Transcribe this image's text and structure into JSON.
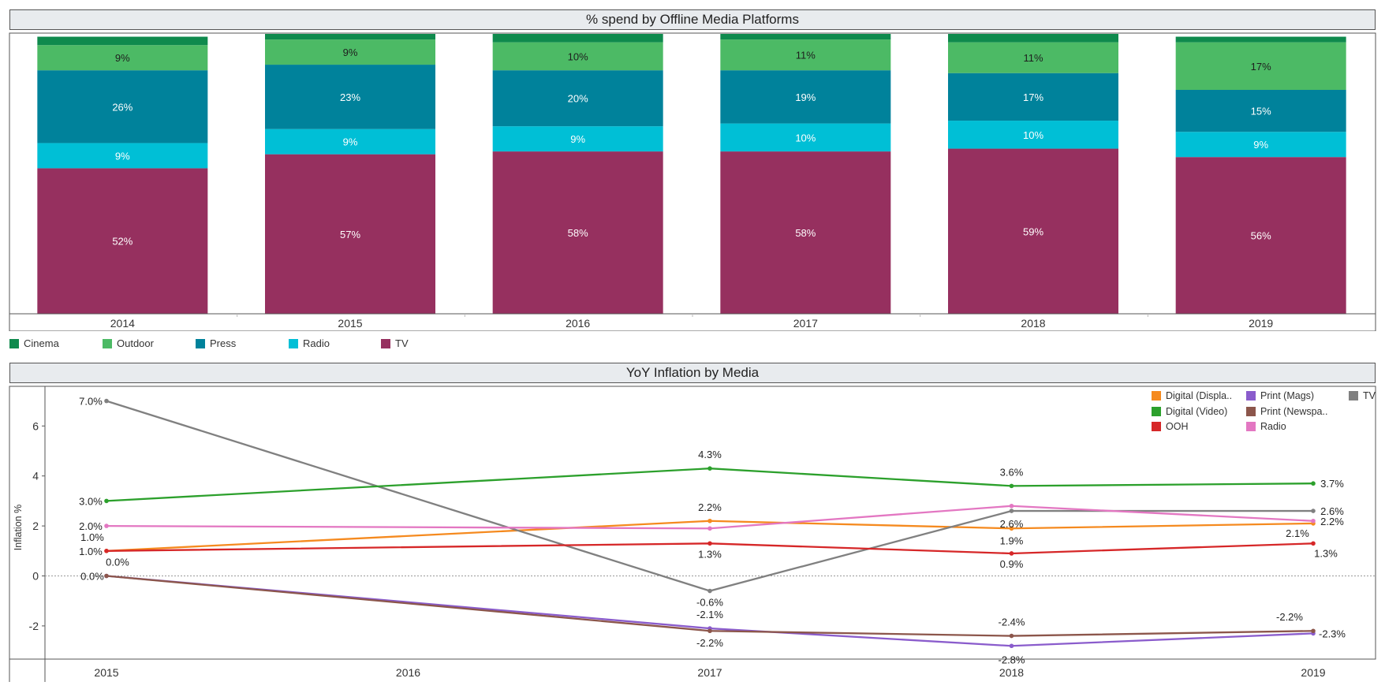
{
  "chart_data": [
    {
      "type": "bar",
      "stacked": true,
      "title": "% spend by Offline Media Platforms",
      "categories": [
        "2014",
        "2015",
        "2016",
        "2017",
        "2018",
        "2019"
      ],
      "series": [
        {
          "name": "TV",
          "color": "#96305f",
          "values": [
            52,
            57,
            58,
            58,
            59,
            56
          ],
          "labels": [
            "52%",
            "57%",
            "58%",
            "58%",
            "59%",
            "56%"
          ]
        },
        {
          "name": "Radio",
          "color": "#00bfd6",
          "values": [
            9,
            9,
            9,
            10,
            10,
            9
          ],
          "labels": [
            "9%",
            "9%",
            "9%",
            "10%",
            "10%",
            "9%"
          ]
        },
        {
          "name": "Press",
          "color": "#00829b",
          "values": [
            26,
            23,
            20,
            19,
            17,
            15
          ],
          "labels": [
            "26%",
            "23%",
            "20%",
            "19%",
            "17%",
            "15%"
          ]
        },
        {
          "name": "Outdoor",
          "color": "#4cba65",
          "values": [
            9,
            9,
            10,
            11,
            11,
            17
          ],
          "labels": [
            "9%",
            "9%",
            "10%",
            "11%",
            "11%",
            "17%"
          ]
        },
        {
          "name": "Cinema",
          "color": "#0f8a4d",
          "values": [
            3,
            2,
            3,
            2,
            3,
            2
          ],
          "labels": [
            "",
            "",
            "",
            "",
            "",
            ""
          ]
        }
      ],
      "legend": {
        "placement": "bottom-left",
        "order": [
          "Cinema",
          "Outdoor",
          "Press",
          "Radio",
          "TV"
        ]
      }
    },
    {
      "type": "line",
      "title": "YoY Inflation by Media",
      "ylabel": "Inflation %",
      "xlabel": "",
      "x_ticks": [
        "2015",
        "2016",
        "2017",
        "2018",
        "2019"
      ],
      "y_ticks": [
        "6",
        "4",
        "2",
        "0",
        "-2"
      ],
      "ylim": [
        -3.3,
        7.6
      ],
      "xlim": [
        2015,
        2019
      ],
      "zero_line": true,
      "legend": {
        "placement": "top-right",
        "labels": [
          "Digital (Displa..",
          "Print (Mags)",
          "TV",
          "Digital (Video)",
          "Print (Newspa..",
          "OOH",
          "Radio"
        ]
      },
      "series": [
        {
          "name": "Digital (Display)",
          "color": "#f58a1f",
          "x": [
            2015,
            2017,
            2018,
            2019
          ],
          "values": [
            1.0,
            2.2,
            1.9,
            2.1
          ],
          "labels": [
            "1.0%",
            "2.2%",
            "1.9%",
            "2.1%"
          ]
        },
        {
          "name": "Print (Mags)",
          "color": "#8a5ccc",
          "x": [
            2015,
            2017,
            2018,
            2019
          ],
          "values": [
            0.0,
            -2.1,
            -2.8,
            -2.3
          ],
          "labels": [
            "0.0%",
            "-2.1%",
            "-2.8%",
            "-2.3%"
          ]
        },
        {
          "name": "TV",
          "color": "#808080",
          "x": [
            2015,
            2017,
            2018,
            2019
          ],
          "values": [
            7.0,
            -0.6,
            2.6,
            2.6
          ],
          "labels": [
            "7.0%",
            "-0.6%",
            "2.6%",
            "2.6%"
          ]
        },
        {
          "name": "Digital (Video)",
          "color": "#2ca02c",
          "x": [
            2015,
            2017,
            2018,
            2019
          ],
          "values": [
            3.0,
            4.3,
            3.6,
            3.7
          ],
          "labels": [
            "3.0%",
            "4.3%",
            "3.6%",
            "3.7%"
          ]
        },
        {
          "name": "Print (Newspapers)",
          "color": "#8c564b",
          "x": [
            2015,
            2017,
            2018,
            2019
          ],
          "values": [
            0.0,
            -2.2,
            -2.4,
            -2.2
          ],
          "labels": [
            "0.0%",
            "-2.2%",
            "-2.4%",
            "-2.2%"
          ]
        },
        {
          "name": "OOH",
          "color": "#d62728",
          "x": [
            2015,
            2017,
            2018,
            2019
          ],
          "values": [
            1.0,
            1.3,
            0.9,
            1.3
          ],
          "labels": [
            "1.0%",
            "1.3%",
            "0.9%",
            "1.3%"
          ]
        },
        {
          "name": "Radio",
          "color": "#e377c2",
          "x": [
            2015,
            2017,
            2018,
            2019
          ],
          "values": [
            2.0,
            1.9,
            2.8,
            2.2
          ],
          "labels": [
            "2.0%",
            "",
            "",
            "2.2%"
          ]
        }
      ]
    }
  ]
}
